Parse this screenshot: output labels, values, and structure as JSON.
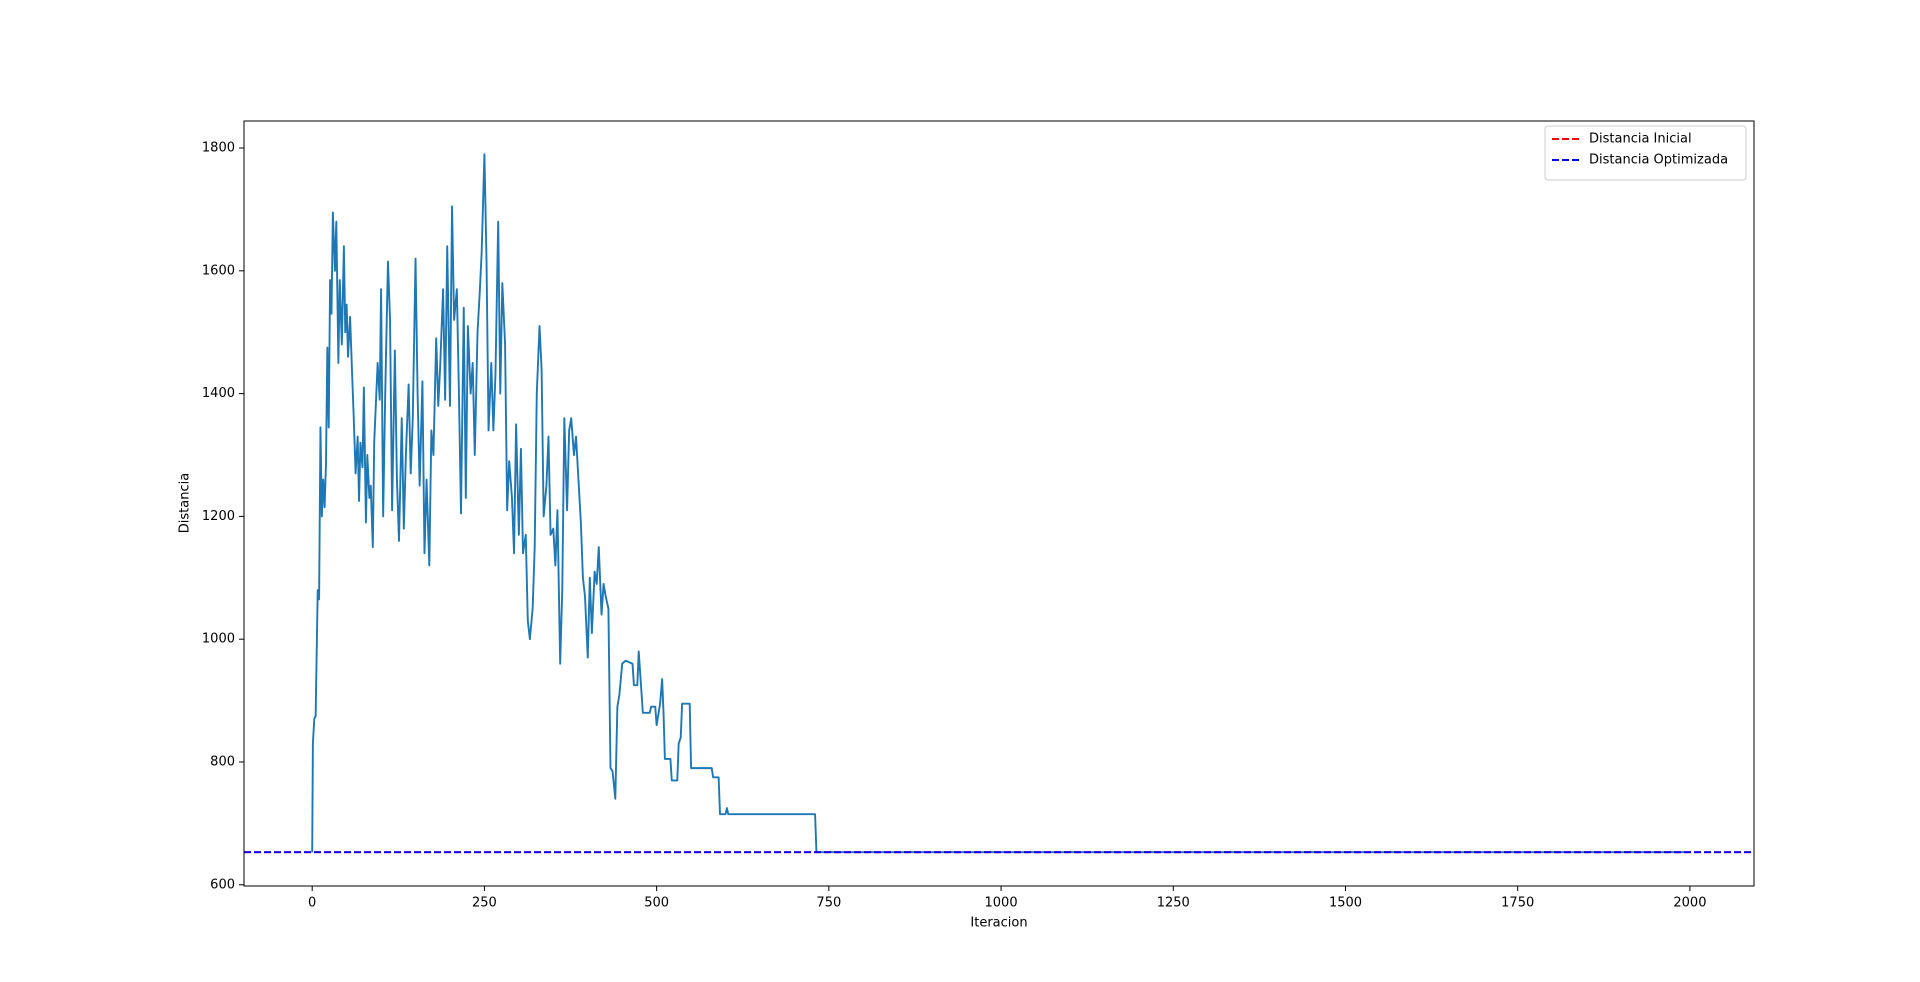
{
  "chart_data": {
    "type": "line",
    "xlabel": "Iteracion",
    "ylabel": "Distancia",
    "x": [
      0,
      1,
      3,
      5,
      8,
      10,
      12,
      14,
      16,
      18,
      20,
      22,
      24,
      26,
      28,
      30,
      33,
      35,
      38,
      40,
      43,
      46,
      48,
      50,
      52,
      55,
      58,
      60,
      63,
      66,
      68,
      70,
      73,
      75,
      78,
      80,
      83,
      85,
      88,
      90,
      95,
      98,
      100,
      103,
      106,
      110,
      113,
      116,
      120,
      123,
      126,
      130,
      133,
      136,
      140,
      143,
      146,
      150,
      153,
      156,
      160,
      163,
      166,
      170,
      173,
      176,
      180,
      183,
      186,
      190,
      193,
      196,
      200,
      203,
      206,
      210,
      213,
      216,
      220,
      223,
      226,
      230,
      233,
      236,
      240,
      243,
      246,
      250,
      253,
      256,
      260,
      263,
      266,
      270,
      273,
      276,
      280,
      283,
      286,
      290,
      293,
      296,
      300,
      303,
      306,
      310,
      313,
      316,
      320,
      323,
      326,
      330,
      333,
      336,
      340,
      343,
      346,
      350,
      353,
      356,
      360,
      363,
      366,
      370,
      373,
      376,
      380,
      383,
      386,
      390,
      393,
      396,
      400,
      403,
      406,
      410,
      413,
      416,
      420,
      423,
      426,
      430,
      433,
      436,
      440,
      443,
      446,
      450,
      455,
      465,
      467,
      472,
      474,
      477,
      480,
      490,
      492,
      498,
      500,
      505,
      508,
      510,
      512,
      520,
      522,
      530,
      532,
      535,
      537,
      548,
      550,
      580,
      582,
      590,
      592,
      600,
      602,
      604,
      730,
      732,
      1999
    ],
    "series": [
      {
        "color": "#1f77b4",
        "values": [
          653,
          830,
          870,
          875,
          1080,
          1065,
          1345,
          1200,
          1260,
          1215,
          1285,
          1475,
          1345,
          1585,
          1530,
          1695,
          1600,
          1680,
          1450,
          1585,
          1480,
          1640,
          1500,
          1545,
          1460,
          1525,
          1430,
          1370,
          1270,
          1330,
          1225,
          1320,
          1280,
          1410,
          1190,
          1300,
          1230,
          1250,
          1150,
          1320,
          1450,
          1390,
          1570,
          1200,
          1400,
          1615,
          1520,
          1210,
          1470,
          1260,
          1160,
          1360,
          1180,
          1300,
          1415,
          1270,
          1360,
          1620,
          1400,
          1250,
          1420,
          1140,
          1260,
          1120,
          1340,
          1300,
          1490,
          1380,
          1450,
          1570,
          1390,
          1640,
          1380,
          1705,
          1520,
          1570,
          1400,
          1205,
          1540,
          1230,
          1510,
          1400,
          1450,
          1300,
          1500,
          1560,
          1630,
          1790,
          1620,
          1340,
          1450,
          1340,
          1430,
          1680,
          1400,
          1580,
          1480,
          1210,
          1290,
          1230,
          1140,
          1350,
          1170,
          1310,
          1140,
          1170,
          1030,
          1000,
          1050,
          1150,
          1400,
          1510,
          1440,
          1200,
          1250,
          1330,
          1170,
          1180,
          1120,
          1210,
          960,
          1080,
          1360,
          1210,
          1340,
          1360,
          1300,
          1330,
          1270,
          1190,
          1100,
          1070,
          970,
          1100,
          1010,
          1110,
          1090,
          1150,
          1040,
          1090,
          1070,
          1050,
          790,
          785,
          740,
          890,
          910,
          960,
          965,
          960,
          925,
          925,
          980,
          930,
          880,
          880,
          890,
          890,
          860,
          895,
          935,
          880,
          805,
          805,
          770,
          770,
          830,
          840,
          895,
          895,
          790,
          790,
          775,
          775,
          715,
          715,
          725,
          715,
          715,
          653,
          653
        ]
      }
    ],
    "reference_lines": [
      {
        "name": "Distancia Inicial",
        "color": "red",
        "value": 653
      },
      {
        "name": "Distancia Optimizada",
        "color": "blue",
        "value": 653
      }
    ],
    "legend": "upper right",
    "xlim": [
      -99,
      2093
    ],
    "xticks": [
      0,
      250,
      500,
      750,
      1000,
      1250,
      1500,
      1750,
      2000
    ],
    "ylim": [
      598,
      1844
    ],
    "yticks": [
      600,
      800,
      1000,
      1200,
      1400,
      1600,
      1800
    ]
  }
}
